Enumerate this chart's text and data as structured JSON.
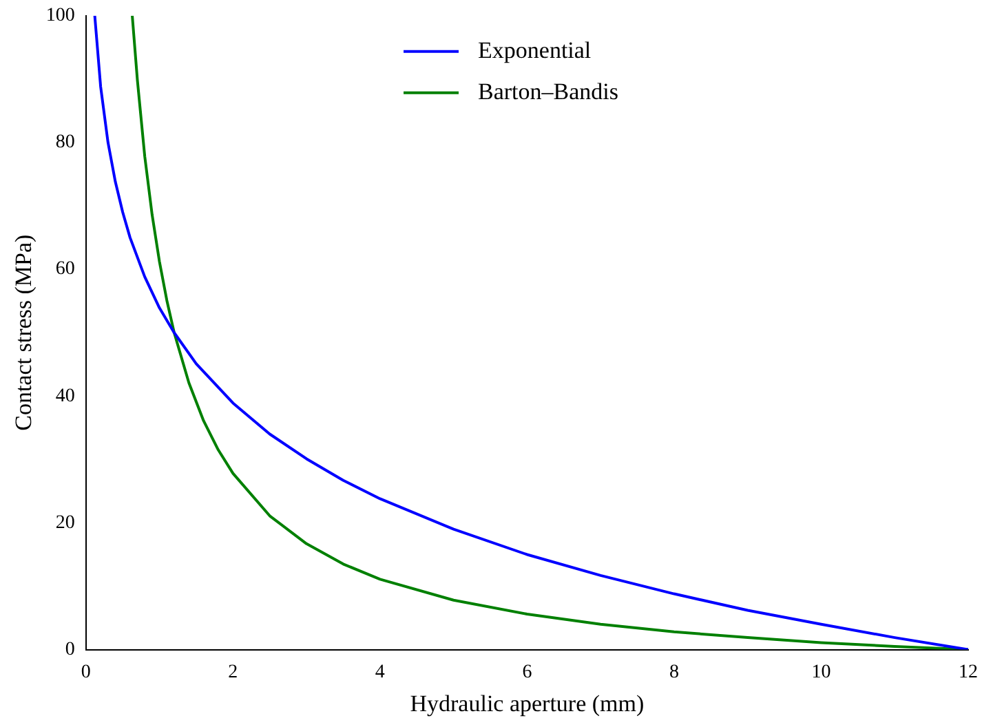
{
  "chart_data": {
    "type": "line",
    "xlabel": "Hydraulic aperture (mm)",
    "ylabel": "Contact stress (MPa)",
    "xlim": [
      0,
      12
    ],
    "xticks": [
      0,
      2,
      4,
      6,
      8,
      10,
      12
    ],
    "ylim": [
      0,
      100
    ],
    "yticks": [
      0,
      20,
      40,
      60,
      80,
      100
    ],
    "grid": false,
    "legend": "top",
    "marker": "none",
    "line_style": "solid",
    "series": [
      {
        "name": "Exponential",
        "color": "#0000ff",
        "x": [
          0.12,
          0.2,
          0.3,
          0.4,
          0.5,
          0.6,
          0.8,
          1.0,
          1.2,
          1.5,
          2,
          2.5,
          3,
          3.5,
          4,
          5,
          6,
          7,
          8,
          9,
          10,
          11,
          12
        ],
        "values": [
          100,
          88.8,
          80,
          73.8,
          69,
          65,
          58.8,
          53.9,
          50,
          45.1,
          38.9,
          34,
          30.1,
          26.7,
          23.8,
          19,
          15,
          11.7,
          8.8,
          6.2,
          4,
          1.9,
          0
        ]
      },
      {
        "name": "Barton–Bandis",
        "color": "#008000",
        "x": [
          0.63,
          0.7,
          0.8,
          0.9,
          1.0,
          1.1,
          1.2,
          1.4,
          1.6,
          1.8,
          2,
          2.5,
          3,
          3.5,
          4,
          5,
          6,
          7,
          8,
          9,
          10,
          11,
          12
        ],
        "values": [
          100,
          89.8,
          77.8,
          68.6,
          61.2,
          55.1,
          50,
          42.1,
          36.1,
          31.5,
          27.8,
          21.1,
          16.7,
          13.5,
          11.1,
          7.8,
          5.6,
          4,
          2.8,
          1.9,
          1.1,
          0.5,
          0
        ]
      }
    ]
  }
}
